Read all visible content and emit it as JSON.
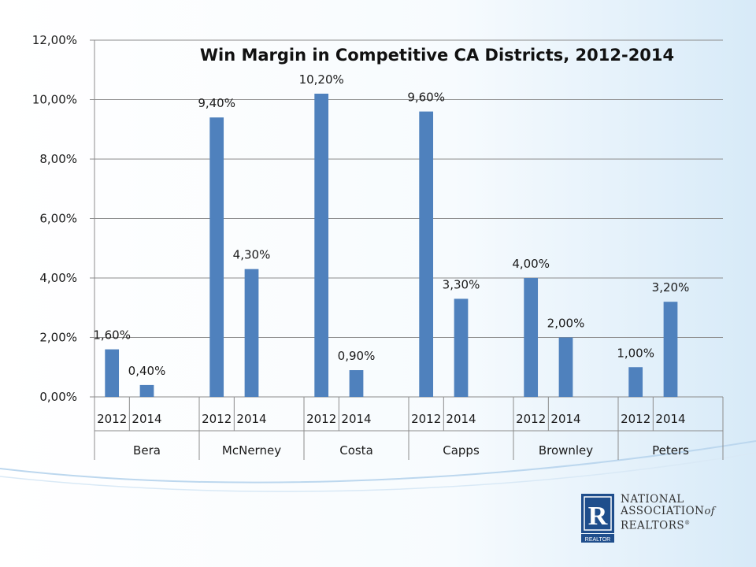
{
  "chart_data": {
    "type": "bar",
    "title": "Win Margin in Competitive CA Districts, 2012-2014",
    "xlabel": "",
    "ylabel": "",
    "ylim": [
      0,
      12
    ],
    "yticks": [
      0,
      2,
      4,
      6,
      8,
      10,
      12
    ],
    "ytick_labels": [
      "0,00%",
      "2,00%",
      "4,00%",
      "6,00%",
      "8,00%",
      "10,00%",
      "12,00%"
    ],
    "grid": true,
    "bar_color": "#4F81BD",
    "groups": [
      {
        "name": "Bera",
        "categories": [
          "2012",
          "2014"
        ],
        "values": [
          1.6,
          0.4
        ],
        "labels": [
          "1,60%",
          "0,40%"
        ]
      },
      {
        "name": "McNerney",
        "categories": [
          "2012",
          "2014"
        ],
        "values": [
          9.4,
          4.3
        ],
        "labels": [
          "9,40%",
          "4,30%"
        ]
      },
      {
        "name": "Costa",
        "categories": [
          "2012",
          "2014"
        ],
        "values": [
          10.2,
          0.9
        ],
        "labels": [
          "10,20%",
          "0,90%"
        ]
      },
      {
        "name": "Capps",
        "categories": [
          "2012",
          "2014"
        ],
        "values": [
          9.6,
          3.3
        ],
        "labels": [
          "9,60%",
          "3,30%"
        ]
      },
      {
        "name": "Brownley",
        "categories": [
          "2012",
          "2014"
        ],
        "values": [
          4.0,
          2.0
        ],
        "labels": [
          "4,00%",
          "2,00%"
        ]
      },
      {
        "name": "Peters",
        "categories": [
          "2012",
          "2014"
        ],
        "values": [
          1.0,
          3.2
        ],
        "labels": [
          "1,00%",
          "3,20%"
        ]
      }
    ]
  },
  "logo": {
    "mark_letter": "R",
    "mark_caption": "REALTOR",
    "line1": "NATIONAL",
    "line2": "ASSOCIATION",
    "line2_suffix": "of",
    "line3": "REALTORS",
    "line3_mark": "®",
    "colors": {
      "mark": "#1F4E8C"
    }
  }
}
